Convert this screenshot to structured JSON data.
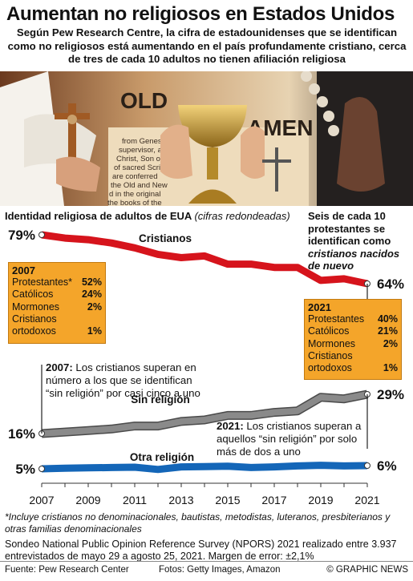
{
  "title": "Aumentan no religiosos en Estados Unidos",
  "subtitle": "Según Pew Research Centre, la cifra de estadounidenses que se identifican como no religiosos está aumentando en el país profundamente cristiano, cerca de tres de cada 10 adultos no tienen afiliación religiosa",
  "chart_heading": "Identidad religiosa de adultos de EUA",
  "chart_heading_sub": "(cifras redondeadas)",
  "callout_top": {
    "line1": "Seis de cada 10 protestantes se identifican como",
    "line2": "cristianos nacidos de nuevo"
  },
  "box_2007": {
    "year": "2007",
    "rows": [
      {
        "label": "Protestantes*",
        "value": "52%"
      },
      {
        "label": "Católicos",
        "value": "24%"
      },
      {
        "label": "Mormones",
        "value": "2%"
      },
      {
        "label": "Cristianos ortodoxos",
        "value": "1%"
      }
    ]
  },
  "box_2021": {
    "year": "2021",
    "rows": [
      {
        "label": "Protestantes",
        "value": "40%"
      },
      {
        "label": "Católicos",
        "value": "21%"
      },
      {
        "label": "Mormones",
        "value": "2%"
      },
      {
        "label": "Cristianos ortodoxos",
        "value": "1%"
      }
    ]
  },
  "annotation_2007": {
    "bold": "2007:",
    "text": " Los cristianos superan en número a los que se identifican “sin religión” por casi cinco a uno"
  },
  "annotation_2021": {
    "bold": "2021:",
    "text": " Los cristianos superan a aquellos “sin religión” por solo más de dos a uno"
  },
  "footnote": "*Incluye cristianos no denominacionales, bautistas, metodistas, luteranos, presbiterianos y otras familias denominacionales",
  "survey_note": "Sondeo National Public Opinion Reference Survey (NPORS) 2021 realizado entre 3.937 entrevistados de mayo 29 a agosto 25, 2021. Margen de error: ±2,1%",
  "footer": {
    "source": "Fuente: Pew Research Center",
    "photos": "Fotos: Getty Images, Amazon",
    "credit": "© GRAPHIC NEWS"
  },
  "photo_text": {
    "sign_old": "OLD",
    "sign_testament": "AMEN",
    "book_lines": [
      "from Genesis to",
      "supervisor, and",
      "Christ, Son of",
      "of sacred Scripture",
      "are conferred",
      "the Old and New",
      "d in the original",
      "the books of the"
    ]
  },
  "colors": {
    "christian": "#d6141c",
    "none": "#8a8a8a",
    "other": "#1466b8",
    "box": "#f4a52a"
  },
  "chart_data": {
    "type": "line",
    "x": [
      2007,
      2008,
      2009,
      2010,
      2011,
      2012,
      2013,
      2014,
      2015,
      2016,
      2017,
      2018,
      2019,
      2020,
      2021
    ],
    "xticks": [
      "2007",
      "2009",
      "2011",
      "2013",
      "2015",
      "2017",
      "2019",
      "2021"
    ],
    "ylim": [
      0,
      85
    ],
    "series": [
      {
        "name": "Cristianos",
        "start_label": "79%",
        "end_label": "64%",
        "values": [
          79,
          78,
          77.5,
          76.5,
          75,
          73,
          72,
          72.5,
          70,
          70,
          69,
          69,
          65,
          65.5,
          64
        ]
      },
      {
        "name": "Sin religión",
        "start_label": "16%",
        "end_label": "29%",
        "values": [
          16,
          16.5,
          17,
          17.5,
          18.5,
          18.5,
          20,
          20.5,
          22,
          22,
          23,
          23.5,
          28,
          27.5,
          29
        ]
      },
      {
        "name": "Otra religión",
        "start_label": "5%",
        "end_label": "6%",
        "values": [
          5,
          5.2,
          5.3,
          5.4,
          5.5,
          4.8,
          5.6,
          5.7,
          5.8,
          5.4,
          5.6,
          5.9,
          6.1,
          5.9,
          6
        ]
      }
    ],
    "grid": false
  }
}
